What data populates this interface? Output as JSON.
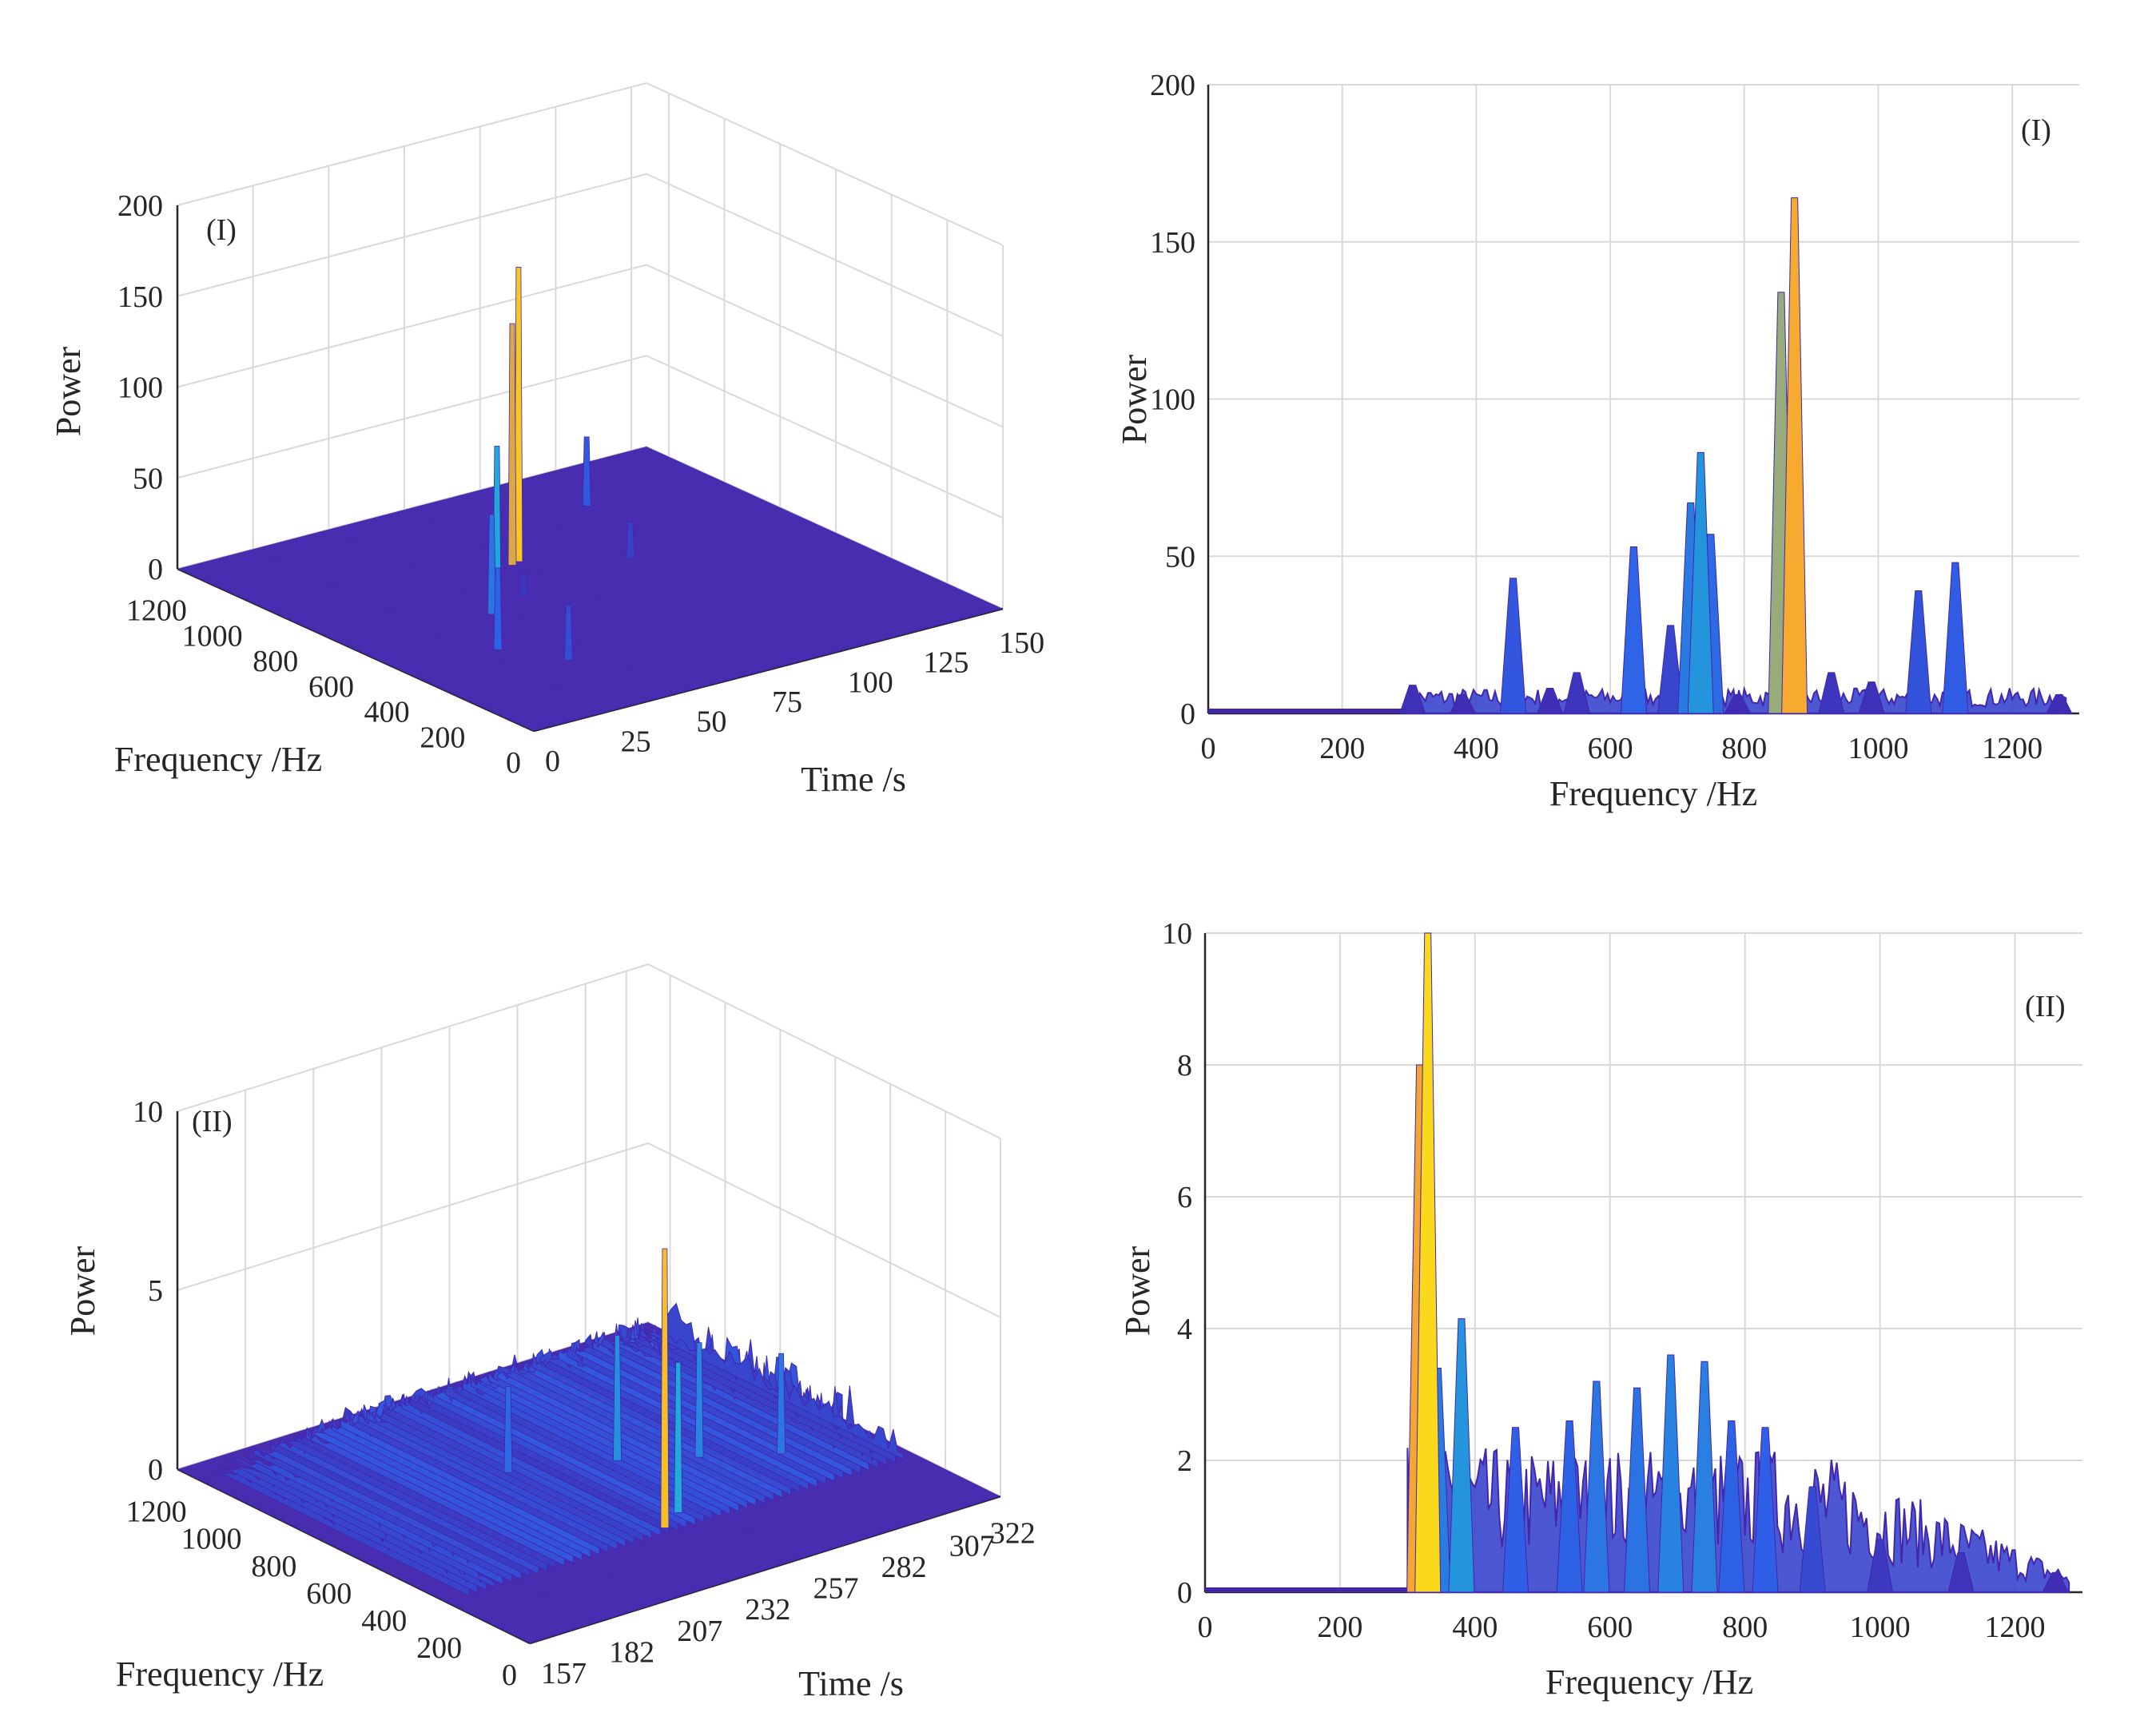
{
  "colors": {
    "surface_base": "#4226ae",
    "surface_mid": "#2f5fe6",
    "surface_cyan": "#1fb1d8",
    "surface_high": "#fad81c",
    "surface_orange": "#f5a632",
    "grid": "#d9d9d9",
    "axis": "#262626",
    "text": "#262626"
  },
  "chart_data": [
    {
      "id": "p1",
      "type": "surface3d",
      "panel_label": "(I)",
      "xlabel": "Frequency /Hz",
      "ylabel": "Time /s",
      "zlabel": "Power",
      "xlim": [
        0,
        1280
      ],
      "ylim": [
        0,
        155
      ],
      "zlim": [
        0,
        200
      ],
      "xticks": [
        0,
        200,
        400,
        600,
        800,
        1000,
        1200
      ],
      "yticks": [
        0,
        25,
        50,
        75,
        100,
        125,
        150
      ],
      "zticks": [
        0,
        50,
        100,
        150,
        200
      ],
      "peaks": [
        {
          "f": 870,
          "t": 75,
          "p": 162
        },
        {
          "f": 860,
          "t": 72,
          "p": 133
        },
        {
          "f": 730,
          "t": 55,
          "p": 82
        },
        {
          "f": 1110,
          "t": 95,
          "p": 50
        },
        {
          "f": 455,
          "t": 30,
          "p": 45
        },
        {
          "f": 640,
          "t": 45,
          "p": 55
        },
        {
          "f": 1060,
          "t": 115,
          "p": 38
        },
        {
          "f": 310,
          "t": 40,
          "p": 30
        },
        {
          "f": 740,
          "t": 100,
          "p": 20
        },
        {
          "f": 690,
          "t": 60,
          "p": 12
        }
      ]
    },
    {
      "id": "p2",
      "type": "spectrum",
      "panel_label": "(I)",
      "xlabel": "Frequency /Hz",
      "ylabel": "Power",
      "xlim": [
        0,
        1300
      ],
      "ylim": [
        0,
        200
      ],
      "xticks": [
        0,
        200,
        400,
        600,
        800,
        1000,
        1200
      ],
      "yticks": [
        0,
        50,
        100,
        150,
        200
      ],
      "onset": 300,
      "peaks": [
        {
          "f": 305,
          "p": 9
        },
        {
          "f": 380,
          "p": 6
        },
        {
          "f": 455,
          "p": 43
        },
        {
          "f": 510,
          "p": 8
        },
        {
          "f": 550,
          "p": 13
        },
        {
          "f": 635,
          "p": 53
        },
        {
          "f": 690,
          "p": 28
        },
        {
          "f": 720,
          "p": 67
        },
        {
          "f": 735,
          "p": 83
        },
        {
          "f": 750,
          "p": 57
        },
        {
          "f": 790,
          "p": 6
        },
        {
          "f": 855,
          "p": 134
        },
        {
          "f": 875,
          "p": 164
        },
        {
          "f": 930,
          "p": 13
        },
        {
          "f": 990,
          "p": 10
        },
        {
          "f": 1060,
          "p": 39
        },
        {
          "f": 1115,
          "p": 48
        },
        {
          "f": 1270,
          "p": 6
        }
      ]
    },
    {
      "id": "p3",
      "type": "surface3d",
      "panel_label": "(II)",
      "xlabel": "Frequency /Hz",
      "ylabel": "Time /s",
      "zlabel": "Power",
      "xlim": [
        0,
        1280
      ],
      "ylim": [
        157,
        330
      ],
      "zlim": [
        0,
        10
      ],
      "xticks": [
        0,
        200,
        400,
        600,
        800,
        1000,
        1200
      ],
      "yticks": [
        157,
        182,
        207,
        232,
        257,
        282,
        307,
        322
      ],
      "zticks": [
        0,
        5,
        10
      ],
      "peaks": [
        {
          "f": 330,
          "t": 240,
          "p": 7.8
        },
        {
          "f": 380,
          "t": 250,
          "p": 4.2
        },
        {
          "f": 700,
          "t": 260,
          "p": 3.5
        },
        {
          "f": 600,
          "t": 280,
          "p": 3.2
        },
        {
          "f": 500,
          "t": 300,
          "p": 2.8
        },
        {
          "f": 800,
          "t": 230,
          "p": 2.4
        }
      ]
    },
    {
      "id": "p4",
      "type": "spectrum",
      "panel_label": "(II)",
      "xlabel": "Frequency /Hz",
      "ylabel": "Power",
      "xlim": [
        0,
        1300
      ],
      "ylim": [
        0,
        10
      ],
      "xticks": [
        0,
        200,
        400,
        600,
        800,
        1000,
        1200
      ],
      "yticks": [
        0,
        2,
        4,
        6,
        8,
        10
      ],
      "onset": 300,
      "peaks": [
        {
          "f": 318,
          "p": 8.0
        },
        {
          "f": 330,
          "p": 10.0
        },
        {
          "f": 345,
          "p": 3.4
        },
        {
          "f": 380,
          "p": 4.15
        },
        {
          "f": 460,
          "p": 2.5
        },
        {
          "f": 540,
          "p": 2.6
        },
        {
          "f": 580,
          "p": 3.2
        },
        {
          "f": 640,
          "p": 3.1
        },
        {
          "f": 690,
          "p": 3.6
        },
        {
          "f": 740,
          "p": 3.5
        },
        {
          "f": 780,
          "p": 2.6
        },
        {
          "f": 830,
          "p": 2.5
        },
        {
          "f": 900,
          "p": 1.6
        },
        {
          "f": 1000,
          "p": 0.8
        },
        {
          "f": 1120,
          "p": 0.6
        },
        {
          "f": 1260,
          "p": 0.3
        }
      ]
    }
  ]
}
